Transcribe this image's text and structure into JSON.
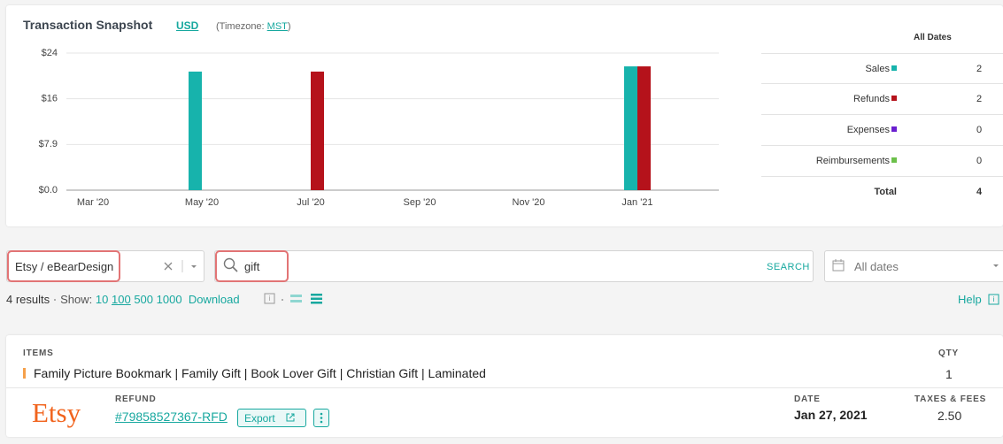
{
  "header": {
    "title": "Transaction Snapshot",
    "currency": "USD",
    "timezone_prefix": "(Timezone:",
    "timezone": "MST",
    "timezone_suffix": ")"
  },
  "chart_data": {
    "type": "bar",
    "categories": [
      "Mar '20",
      null,
      "May '20",
      null,
      "Jul '20",
      null,
      "Sep '20",
      null,
      "Nov '20",
      null,
      "Jan '21"
    ],
    "series": [
      {
        "name": "Sales",
        "color": "#17b3ac",
        "values": [
          null,
          null,
          20.5,
          null,
          null,
          null,
          null,
          null,
          null,
          null,
          21.4
        ]
      },
      {
        "name": "Refunds",
        "color": "#b5121b",
        "values": [
          null,
          null,
          null,
          null,
          20.5,
          null,
          null,
          null,
          null,
          null,
          21.4
        ]
      }
    ],
    "ylim": [
      0,
      23.7
    ],
    "yticks": [
      {
        "value": 0,
        "label": "$0.0"
      },
      {
        "value": 7.9,
        "label": "$7.9"
      },
      {
        "value": 15.8,
        "label": "$16"
      },
      {
        "value": 23.7,
        "label": "$24"
      }
    ],
    "grid": true
  },
  "summary": {
    "header": "All Dates",
    "extra_labels": [
      "Expenses",
      "Reimbursements"
    ],
    "counts": [
      2,
      2,
      0,
      0
    ],
    "total_label": "Total",
    "total": 4
  },
  "filters": {
    "source": "Etsy / eBearDesign",
    "query": "gift",
    "search_button": "SEARCH",
    "date_filter": "All dates"
  },
  "results_bar": {
    "count_text": "4 results",
    "show_label": "Show:",
    "page_sizes": [
      "10",
      "100",
      "500",
      "1000"
    ],
    "download": "Download",
    "help": "Help"
  },
  "result": {
    "items_label": "ITEMS",
    "qty_label": "QTY",
    "item_title": "Family Picture Bookmark | Family Gift | Book Lover Gift | Christian Gift | Laminated",
    "qty": "1",
    "store_logo": "Etsy",
    "type_label": "REFUND",
    "order_id": "#79858527367-RFD",
    "export": "Export",
    "date_label": "DATE",
    "date": "Jan 27, 2021",
    "taxes_label": "TAXES & FEES",
    "taxes": "2.50"
  }
}
